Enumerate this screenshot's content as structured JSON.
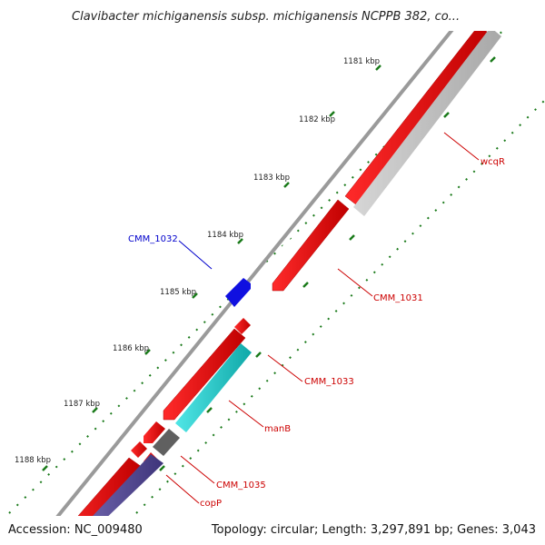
{
  "header": {
    "title": "Clavibacter michiganensis subsp. michiganensis NCPPB 382, co..."
  },
  "footer": {
    "accession": "Accession: NC_009480",
    "summary": "Topology: circular; Length: 3,297,891 bp; Genes: 3,043"
  },
  "scale": {
    "tick_labels": [
      "1181 kbp",
      "1182 kbp",
      "1183 kbp",
      "1184 kbp",
      "1185 kbp",
      "1186 kbp",
      "1187 kbp",
      "1188 kbp"
    ],
    "tick_color": "#1a7a1a"
  },
  "genes": [
    {
      "name": "wcqR",
      "color": "#cc0000",
      "strand": "minus"
    },
    {
      "name": "CMM_1031",
      "color": "#cc0000",
      "strand": "minus"
    },
    {
      "name": "CMM_1032",
      "color": "#0000cc",
      "strand": "plus"
    },
    {
      "name": "CMM_1033",
      "color": "#cc0000",
      "strand": "minus"
    },
    {
      "name": "manB",
      "color": "#cc0000",
      "strand": "minus"
    },
    {
      "name": "CMM_1035",
      "color": "#cc0000",
      "strand": "minus"
    },
    {
      "name": "copP",
      "color": "#cc0000",
      "strand": "minus"
    }
  ],
  "colors": {
    "backbone": "#8c8c8c",
    "gene_red": "#e00000",
    "gene_blue": "#1010e0",
    "gene_cyan": "#20c8c8",
    "gene_grey": "#c0c0c0",
    "gene_dark": "#606060",
    "gene_purple": "#5a4f9a",
    "label_red": "#cc0000",
    "label_blue": "#0000cc"
  }
}
